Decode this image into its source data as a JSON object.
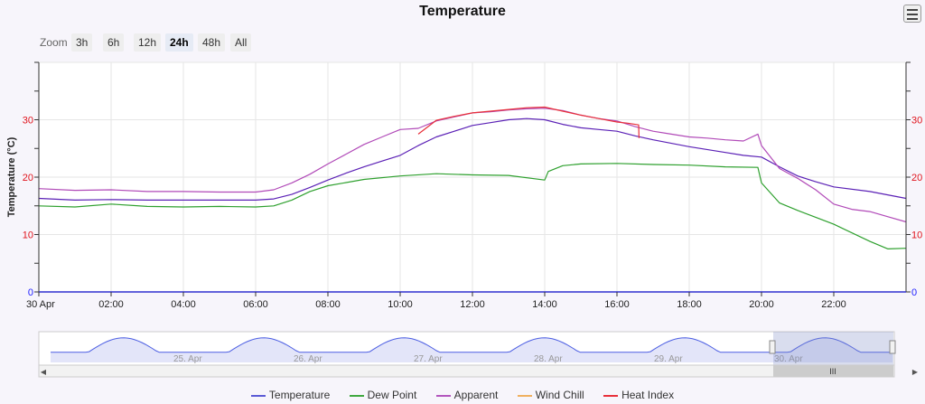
{
  "title": "Temperature",
  "zoom": {
    "label": "Zoom",
    "buttons": [
      "3h",
      "6h",
      "12h",
      "24h",
      "48h",
      "All"
    ],
    "active": "24h"
  },
  "legend": [
    {
      "name": "Temperature",
      "color": "#5b5bd6"
    },
    {
      "name": "Dew Point",
      "color": "#3fa83f"
    },
    {
      "name": "Apparent",
      "color": "#b256bd"
    },
    {
      "name": "Wind Chill",
      "color": "#f0b060"
    },
    {
      "name": "Heat Index",
      "color": "#e8303a"
    }
  ],
  "navigator": {
    "labels": [
      "25. Apr",
      "26. Apr",
      "27. Apr",
      "28. Apr",
      "29. Apr",
      "30. Apr"
    ]
  },
  "chart_data": {
    "type": "line",
    "title": "Temperature",
    "ylabel": "Temperature (°C)",
    "ylim": [
      0,
      40
    ],
    "yticks": [
      0,
      10,
      20,
      30
    ],
    "y_tick_color": "#e0131c",
    "y_zero_color": "#2020ff",
    "xlim": [
      0,
      24
    ],
    "xticks": [
      0,
      2,
      4,
      6,
      8,
      10,
      12,
      14,
      16,
      18,
      20,
      22
    ],
    "xtick_labels": [
      "30 Apr",
      "02:00",
      "04:00",
      "06:00",
      "08:00",
      "10:00",
      "12:00",
      "14:00",
      "16:00",
      "18:00",
      "20:00",
      "22:00"
    ],
    "grid": true,
    "series": [
      {
        "name": "Temperature",
        "color": "#5b21b6",
        "x": [
          0,
          1,
          2,
          3,
          4,
          5,
          6,
          6.5,
          7,
          7.5,
          8,
          8.5,
          9,
          9.5,
          10,
          10.5,
          11,
          11.5,
          12,
          12.5,
          13,
          13.5,
          14,
          14.5,
          15,
          15.5,
          16,
          16.5,
          17,
          18,
          19,
          19.5,
          20,
          20.5,
          21,
          21.5,
          22,
          23,
          24
        ],
        "y": [
          16.3,
          16,
          16.1,
          16,
          16,
          16,
          16,
          16.2,
          17,
          18.2,
          19.5,
          20.7,
          21.8,
          22.8,
          23.8,
          25.5,
          27,
          28,
          29,
          29.5,
          30,
          30.2,
          30,
          29.2,
          28.6,
          28.3,
          28,
          27.2,
          26.5,
          25.3,
          24.3,
          23.8,
          23.5,
          21.8,
          20.2,
          19.2,
          18.3,
          17.5,
          16.3
        ]
      },
      {
        "name": "Dew Point",
        "color": "#2ea02e",
        "x": [
          0,
          1,
          2,
          3,
          4,
          5,
          6,
          6.5,
          7,
          7.5,
          8,
          9,
          10,
          11,
          12,
          13,
          14,
          14.1,
          14.5,
          15,
          16,
          17,
          18,
          19,
          19.9,
          20,
          20.5,
          21,
          21.5,
          22,
          23,
          23.5,
          24
        ],
        "y": [
          15,
          14.8,
          15.3,
          14.9,
          14.8,
          14.9,
          14.8,
          15,
          16,
          17.5,
          18.5,
          19.6,
          20.2,
          20.6,
          20.4,
          20.3,
          19.5,
          21,
          22,
          22.3,
          22.4,
          22.2,
          22.1,
          21.8,
          21.7,
          19,
          15.5,
          14.2,
          13,
          11.8,
          8.8,
          7.5,
          7.6
        ]
      },
      {
        "name": "Apparent",
        "color": "#b14ab8",
        "x": [
          0,
          1,
          2,
          3,
          4,
          5,
          6,
          6.5,
          7,
          7.5,
          8,
          8.5,
          9,
          9.5,
          10,
          10.5,
          11,
          11.5,
          12,
          12.5,
          13,
          13.5,
          14,
          14.5,
          15,
          15.5,
          16,
          16.5,
          17,
          17.5,
          18,
          18.5,
          19,
          19.5,
          19.9,
          20,
          20.5,
          21,
          21.5,
          22,
          22.5,
          23,
          23.5,
          24
        ],
        "y": [
          18,
          17.7,
          17.8,
          17.5,
          17.5,
          17.4,
          17.4,
          17.8,
          19,
          20.5,
          22.3,
          24,
          25.7,
          27,
          28.3,
          28.5,
          29.8,
          30.5,
          31.2,
          31.4,
          31.7,
          31.9,
          32,
          31.6,
          30.8,
          30.2,
          29.8,
          28.8,
          28,
          27.5,
          27,
          26.8,
          26.5,
          26.3,
          27.5,
          25.5,
          21.5,
          19.8,
          17.8,
          15.3,
          14.4,
          14,
          13.1,
          12.2
        ]
      },
      {
        "name": "Heat Index",
        "color": "#e8303a",
        "x": [
          10.5,
          11,
          11.5,
          12,
          12.5,
          13,
          13.5,
          14,
          14.5,
          15,
          15.5,
          16,
          16.3,
          16.6,
          16.61
        ],
        "y": [
          27.5,
          29.9,
          30.6,
          31.2,
          31.5,
          31.8,
          32.1,
          32.2,
          31.5,
          30.8,
          30.2,
          29.6,
          29.4,
          29.1,
          26.8
        ]
      }
    ]
  }
}
